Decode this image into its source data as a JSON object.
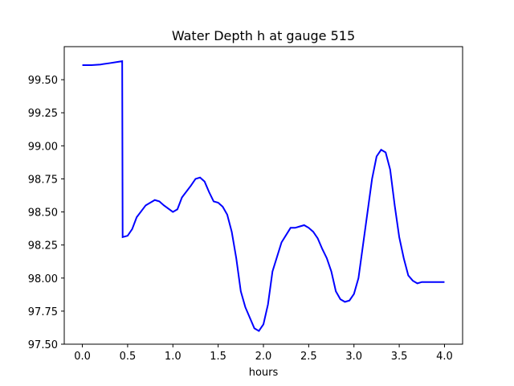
{
  "chart_data": {
    "type": "line",
    "title": "Water Depth h at gauge 515",
    "xlabel": "hours",
    "ylabel": "",
    "xlim": [
      -0.2,
      4.2
    ],
    "ylim": [
      97.5,
      99.75
    ],
    "grid": false,
    "x_ticks": [
      0.0,
      0.5,
      1.0,
      1.5,
      2.0,
      2.5,
      3.0,
      3.5,
      4.0
    ],
    "x_tick_labels": [
      "0.0",
      "0.5",
      "1.0",
      "1.5",
      "2.0",
      "2.5",
      "3.0",
      "3.5",
      "4.0"
    ],
    "y_ticks": [
      97.5,
      97.75,
      98.0,
      98.25,
      98.5,
      98.75,
      99.0,
      99.25,
      99.5
    ],
    "y_tick_labels": [
      "97.50",
      "97.75",
      "98.00",
      "98.25",
      "98.50",
      "98.75",
      "99.00",
      "99.25",
      "99.50"
    ],
    "series": [
      {
        "color": "#0000ff",
        "x": [
          0.0,
          0.1,
          0.2,
          0.3,
          0.44,
          0.445,
          0.5,
          0.55,
          0.6,
          0.7,
          0.8,
          0.85,
          0.9,
          1.0,
          1.05,
          1.1,
          1.2,
          1.25,
          1.3,
          1.35,
          1.4,
          1.45,
          1.5,
          1.55,
          1.6,
          1.65,
          1.7,
          1.75,
          1.8,
          1.85,
          1.9,
          1.95,
          1.98,
          2.0,
          2.05,
          2.1,
          2.2,
          2.3,
          2.35,
          2.4,
          2.45,
          2.5,
          2.55,
          2.6,
          2.65,
          2.7,
          2.75,
          2.8,
          2.85,
          2.9,
          2.95,
          3.0,
          3.05,
          3.1,
          3.15,
          3.2,
          3.25,
          3.3,
          3.35,
          3.4,
          3.45,
          3.5,
          3.55,
          3.6,
          3.65,
          3.7,
          3.75,
          3.8,
          3.85,
          3.9,
          3.95,
          4.0
        ],
        "y": [
          99.61,
          99.61,
          99.615,
          99.625,
          99.64,
          98.31,
          98.32,
          98.37,
          98.46,
          98.55,
          98.59,
          98.58,
          98.55,
          98.5,
          98.52,
          98.61,
          98.7,
          98.75,
          98.76,
          98.73,
          98.65,
          98.58,
          98.57,
          98.54,
          98.48,
          98.35,
          98.15,
          97.9,
          97.78,
          97.7,
          97.62,
          97.6,
          97.63,
          97.65,
          97.8,
          98.05,
          98.27,
          98.38,
          98.38,
          98.39,
          98.4,
          98.38,
          98.35,
          98.3,
          98.22,
          98.15,
          98.05,
          97.9,
          97.84,
          97.82,
          97.83,
          97.88,
          98.0,
          98.25,
          98.5,
          98.75,
          98.92,
          98.97,
          98.95,
          98.82,
          98.55,
          98.31,
          98.15,
          98.02,
          97.98,
          97.96,
          97.97,
          97.97,
          97.97,
          97.97,
          97.97,
          97.97
        ]
      }
    ]
  }
}
